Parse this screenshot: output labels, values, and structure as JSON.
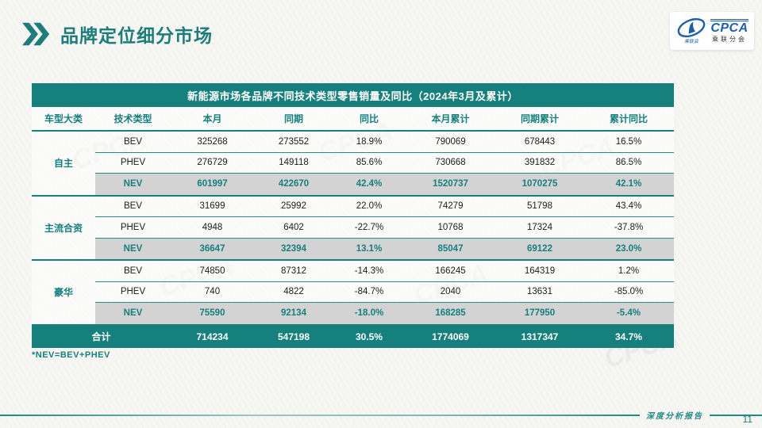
{
  "page": {
    "title": "品牌定位细分市场",
    "footnote": "*NEV=BEV+PHEV",
    "footer_text": "深度分析报告",
    "page_number": "11"
  },
  "logo": {
    "name": "CPCA",
    "subtitle": "乘联分会",
    "emblem_text": "乘联会"
  },
  "decor": {
    "watermark": "CPCA"
  },
  "colors": {
    "teal": "#16807d",
    "highlight_row_bg": "#d3d3d3",
    "logo_blue": "#1b5fae"
  },
  "table": {
    "title": "新能源市场各品牌不同技术类型零售销量及同比（2024年3月及累计）",
    "columns": [
      "车型大类",
      "技术类型",
      "本月",
      "同期",
      "同比",
      "本月累计",
      "同期累计",
      "累计同比"
    ],
    "groups": [
      {
        "category": "自主",
        "rows": [
          {
            "tech": "BEV",
            "month": "325268",
            "prev": "273552",
            "yoy": "18.9%",
            "cum": "790069",
            "prev_cum": "678443",
            "cum_yoy": "16.5%",
            "highlight": false
          },
          {
            "tech": "PHEV",
            "month": "276729",
            "prev": "149118",
            "yoy": "85.6%",
            "cum": "730668",
            "prev_cum": "391832",
            "cum_yoy": "86.5%",
            "highlight": false
          },
          {
            "tech": "NEV",
            "month": "601997",
            "prev": "422670",
            "yoy": "42.4%",
            "cum": "1520737",
            "prev_cum": "1070275",
            "cum_yoy": "42.1%",
            "highlight": true
          }
        ]
      },
      {
        "category": "主流合资",
        "rows": [
          {
            "tech": "BEV",
            "month": "31699",
            "prev": "25992",
            "yoy": "22.0%",
            "cum": "74279",
            "prev_cum": "51798",
            "cum_yoy": "43.4%",
            "highlight": false
          },
          {
            "tech": "PHEV",
            "month": "4948",
            "prev": "6402",
            "yoy": "-22.7%",
            "cum": "10768",
            "prev_cum": "17324",
            "cum_yoy": "-37.8%",
            "highlight": false
          },
          {
            "tech": "NEV",
            "month": "36647",
            "prev": "32394",
            "yoy": "13.1%",
            "cum": "85047",
            "prev_cum": "69122",
            "cum_yoy": "23.0%",
            "highlight": true
          }
        ]
      },
      {
        "category": "豪华",
        "rows": [
          {
            "tech": "BEV",
            "month": "74850",
            "prev": "87312",
            "yoy": "-14.3%",
            "cum": "166245",
            "prev_cum": "164319",
            "cum_yoy": "1.2%",
            "highlight": false
          },
          {
            "tech": "PHEV",
            "month": "740",
            "prev": "4822",
            "yoy": "-84.7%",
            "cum": "2040",
            "prev_cum": "13631",
            "cum_yoy": "-85.0%",
            "highlight": false
          },
          {
            "tech": "NEV",
            "month": "75590",
            "prev": "92134",
            "yoy": "-18.0%",
            "cum": "168285",
            "prev_cum": "177950",
            "cum_yoy": "-5.4%",
            "highlight": true
          }
        ]
      }
    ],
    "total": {
      "label": "合计",
      "month": "714234",
      "prev": "547198",
      "yoy": "30.5%",
      "cum": "1774069",
      "prev_cum": "1317347",
      "cum_yoy": "34.7%"
    }
  }
}
